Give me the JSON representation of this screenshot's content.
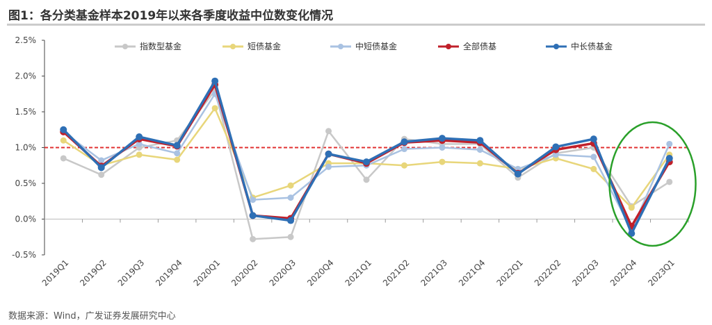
{
  "title": "图1：各分类基金样本2019年以来各季度收益中位数变化情况",
  "source": "数据来源：Wind，广发证券发展研究中心",
  "chart_data": {
    "type": "line",
    "categories": [
      "2019Q1",
      "2019Q2",
      "2019Q3",
      "2019Q4",
      "2020Q1",
      "2020Q2",
      "2020Q3",
      "2020Q4",
      "2021Q1",
      "2021Q2",
      "2021Q3",
      "2021Q4",
      "2022Q1",
      "2022Q2",
      "2022Q3",
      "2022Q4",
      "2023Q1"
    ],
    "ylim": [
      -0.5,
      2.5
    ],
    "yticks": [
      "-0.5%",
      "0.0%",
      "0.5%",
      "1.0%",
      "1.5%",
      "2.0%",
      "2.5%"
    ],
    "reference_line": {
      "value": 1.0,
      "color": "#e03030",
      "style": "dashed"
    },
    "legend_position": "top",
    "highlight": {
      "shape": "ellipse",
      "color": "#2aa02a",
      "categories": [
        "2022Q4",
        "2023Q1"
      ]
    },
    "series": [
      {
        "name": "指数型基金",
        "color": "#c8c8c8",
        "values": [
          0.85,
          0.62,
          1.0,
          1.1,
          1.8,
          -0.28,
          -0.25,
          1.23,
          0.55,
          1.12,
          1.05,
          1.05,
          0.58,
          0.92,
          1.0,
          0.18,
          0.52
        ]
      },
      {
        "name": "短债基金",
        "color": "#e8d67a",
        "values": [
          1.1,
          0.75,
          0.9,
          0.83,
          1.55,
          0.3,
          0.47,
          0.78,
          0.78,
          0.75,
          0.8,
          0.78,
          0.7,
          0.85,
          0.7,
          0.16,
          0.9
        ]
      },
      {
        "name": "中短债基金",
        "color": "#a9c2e2",
        "values": [
          1.22,
          0.82,
          1.05,
          0.92,
          1.75,
          0.27,
          0.3,
          0.73,
          0.75,
          0.98,
          1.0,
          0.97,
          0.7,
          0.9,
          0.87,
          -0.15,
          1.05
        ]
      },
      {
        "name": "全部债基",
        "color": "#c0202a",
        "values": [
          1.22,
          0.74,
          1.12,
          1.02,
          1.88,
          0.05,
          0.01,
          0.91,
          0.78,
          1.07,
          1.1,
          1.07,
          0.64,
          0.97,
          1.06,
          -0.1,
          0.8
        ]
      },
      {
        "name": "中长债基金",
        "color": "#2e6fb5",
        "values": [
          1.25,
          0.72,
          1.15,
          1.03,
          1.93,
          0.05,
          -0.02,
          0.91,
          0.8,
          1.08,
          1.13,
          1.1,
          0.63,
          1.01,
          1.12,
          -0.2,
          0.85
        ]
      }
    ]
  }
}
